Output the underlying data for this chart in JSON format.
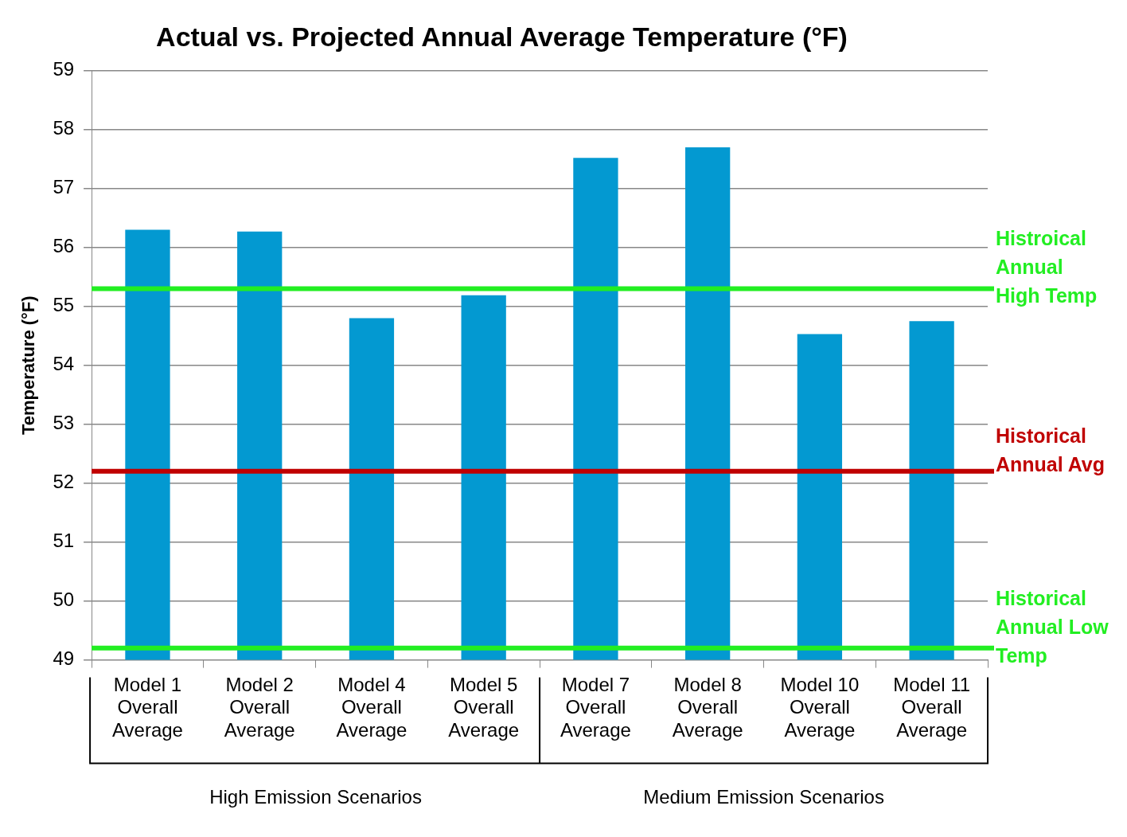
{
  "chart_data": {
    "type": "bar",
    "title": "Actual vs. Projected Annual Average Temperature (°F)",
    "ylabel": "Temperature (°F)",
    "categories": [
      "Model 1 Overall Average",
      "Model 2 Overall Average",
      "Model 4 Overall Average",
      "Model 5 Overall Average",
      "Model 7 Overall Average",
      "Model 8 Overall Average",
      "Model 10 Overall Average",
      "Model 11 Overall Average"
    ],
    "values": [
      56.3,
      56.27,
      54.8,
      55.19,
      57.52,
      57.7,
      54.53,
      54.75
    ],
    "color": "#0399d1",
    "ylim": [
      49,
      59
    ],
    "yticks": [
      49,
      50,
      51,
      52,
      53,
      54,
      55,
      56,
      57,
      58,
      59
    ],
    "grid": "y",
    "legend": false,
    "ref_lines": [
      {
        "axis": "y",
        "value": 55.3,
        "label": "Histroical Annual High Temp",
        "color": "#22ee22"
      },
      {
        "axis": "y",
        "value": 52.2,
        "label": "Historical Annual Avg",
        "color": "#c00000"
      },
      {
        "axis": "y",
        "value": 49.2,
        "label": "Historical Annual Low Temp",
        "color": "#22ee22"
      }
    ],
    "annotations": [
      "High Emission Scenarios",
      "Medium Emission Scenarios"
    ]
  }
}
